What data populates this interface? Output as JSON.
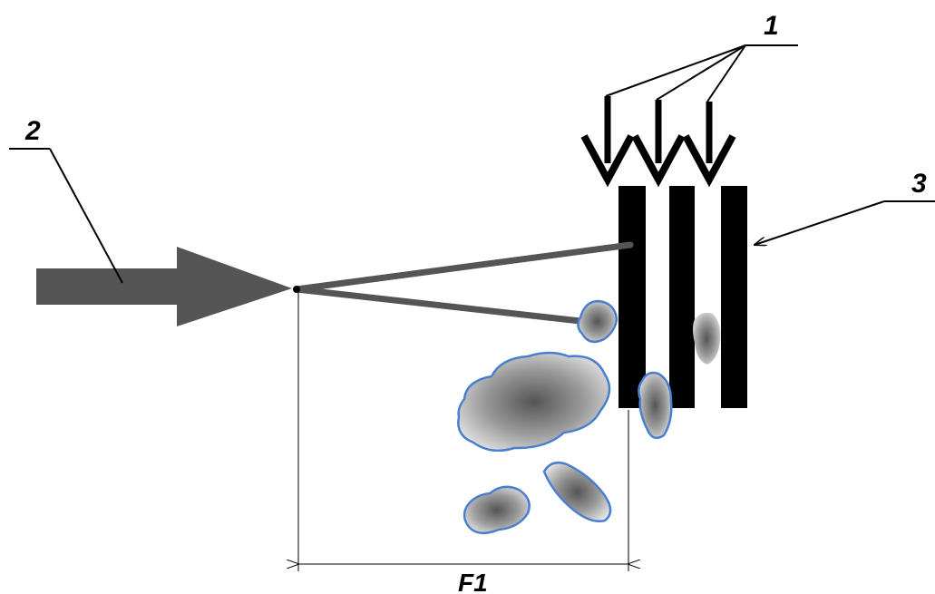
{
  "labels": {
    "beams": "1",
    "source": "2",
    "target": "3",
    "distance": "F1"
  }
}
